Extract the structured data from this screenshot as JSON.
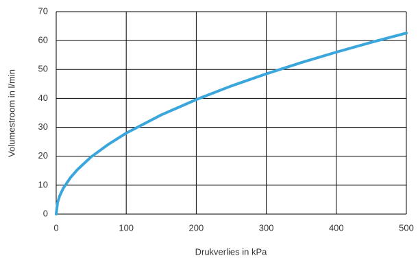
{
  "chart_data": {
    "type": "line",
    "x_label": "Drukverlies in kPa",
    "y_label": "Volumestroom in l/min",
    "x": [
      0,
      2,
      5,
      10,
      20,
      30,
      50,
      75,
      100,
      150,
      200,
      250,
      300,
      350,
      400,
      450,
      500
    ],
    "series": [
      {
        "color": "#3aa6dc",
        "values": [
          0,
          4.0,
          6.3,
          8.9,
          12.5,
          15.3,
          19.8,
          24.2,
          28.0,
          34.3,
          39.6,
          44.3,
          48.5,
          52.4,
          56.0,
          59.4,
          62.6
        ]
      }
    ],
    "xlim": [
      0,
      500
    ],
    "xticks": [
      0,
      100,
      200,
      300,
      400,
      500
    ],
    "ylim": [
      0,
      70
    ],
    "yticks": [
      0,
      10,
      20,
      30,
      40,
      50,
      60,
      70
    ],
    "grid": true
  }
}
